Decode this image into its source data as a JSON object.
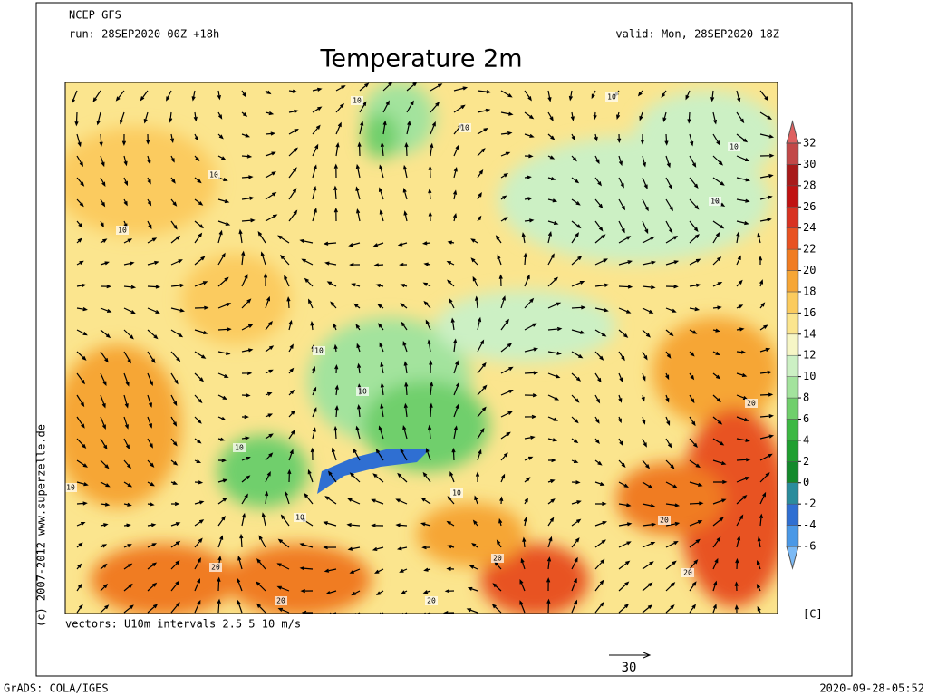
{
  "header": {
    "model": "NCEP GFS",
    "run": "run: 28SEP2020 00Z +18h",
    "valid": "valid: Mon, 28SEP2020 18Z"
  },
  "title": "Temperature 2m",
  "colorbar": {
    "ticks": [
      -6,
      -4,
      -2,
      0,
      2,
      4,
      6,
      8,
      10,
      12,
      14,
      16,
      18,
      20,
      22,
      24,
      26,
      28,
      30,
      32
    ],
    "colors": [
      "#7cbaf5",
      "#4a98e6",
      "#2f6fd2",
      "#2a8c9c",
      "#138a2c",
      "#1f9f30",
      "#3cb843",
      "#70cf6c",
      "#a3e39d",
      "#ccf0c4",
      "#f6f6c6",
      "#fbe58e",
      "#fbcb5e",
      "#f6a636",
      "#f07c22",
      "#e85222",
      "#d83222",
      "#c01212",
      "#a81a1a",
      "#c24848",
      "#de6060"
    ],
    "unit": "[C]"
  },
  "contour_labels": [
    "10",
    "10",
    "10",
    "10",
    "10",
    "10",
    "10",
    "10",
    "10",
    "10",
    "10",
    "10",
    "10",
    "20",
    "20",
    "20",
    "20",
    "20",
    "20",
    "20"
  ],
  "vectors_caption": "vectors: U10m intervals 2.5 5 10 m/s",
  "reference_vector": "30",
  "copyright": "(c) 2007-2012 www.superzelle.de",
  "footer": {
    "left": "GrADS: COLA/IGES",
    "right": "2020-09-28-05:52"
  }
}
